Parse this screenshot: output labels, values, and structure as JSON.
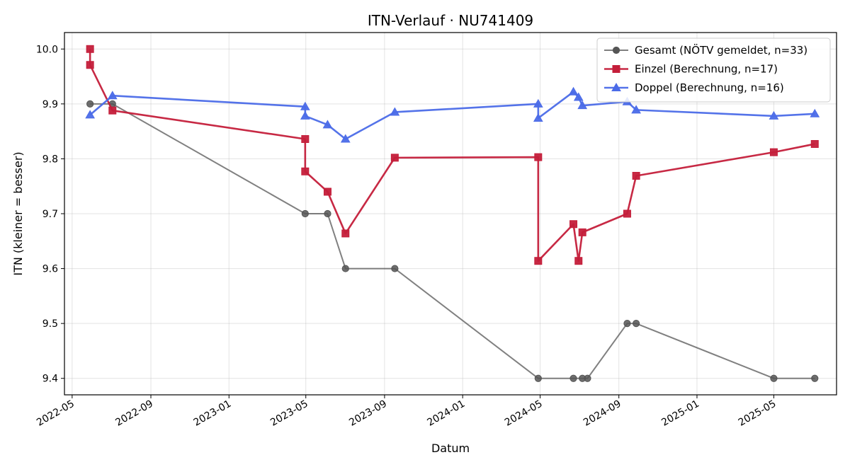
{
  "chart_data": {
    "type": "line",
    "title": "ITN-Verlauf · NU741409",
    "xlabel": "Datum",
    "ylabel": "ITN  (kleiner = besser)",
    "x_ticks": [
      "2022-05",
      "2022-09",
      "2023-01",
      "2023-05",
      "2023-09",
      "2024-01",
      "2024-05",
      "2024-09",
      "2025-01",
      "2025-05"
    ],
    "xlim": [
      "2022-04-19",
      "2025-08-07"
    ],
    "ylim": [
      9.37,
      10.03
    ],
    "y_ticks": [
      9.4,
      9.5,
      9.6,
      9.7,
      9.8,
      9.9,
      10.0
    ],
    "grid": true,
    "legend_position": "top-right",
    "series": [
      {
        "name": "Gesamt (NÖTV gemeldet, n=33)",
        "color": "#555555",
        "marker": "circle",
        "x": [
          "2022-05-29",
          "2022-07-03",
          "2023-04-30",
          "2023-06-04",
          "2023-07-02",
          "2023-09-17",
          "2024-04-28",
          "2024-06-22",
          "2024-07-06",
          "2024-07-14",
          "2024-09-14",
          "2024-09-28",
          "2025-05-01",
          "2025-07-04"
        ],
        "y": [
          9.9,
          9.9,
          9.7,
          9.7,
          9.6,
          9.6,
          9.4,
          9.4,
          9.4,
          9.4,
          9.5,
          9.5,
          9.4,
          9.4
        ]
      },
      {
        "name": "Einzel (Berechnung, n=17)",
        "color": "#c41e3a",
        "marker": "square",
        "x": [
          "2022-05-29",
          "2022-05-29",
          "2022-07-03",
          "2023-04-30",
          "2023-04-30",
          "2023-06-04",
          "2023-07-02",
          "2023-09-17",
          "2024-04-28",
          "2024-04-28",
          "2024-06-22",
          "2024-06-30",
          "2024-07-06",
          "2024-09-14",
          "2024-09-28",
          "2025-05-01",
          "2025-07-04"
        ],
        "y": [
          10.0,
          9.971,
          9.888,
          9.836,
          9.777,
          9.74,
          9.664,
          9.802,
          9.803,
          9.614,
          9.681,
          9.614,
          9.666,
          9.7,
          9.769,
          9.812,
          9.827
        ]
      },
      {
        "name": "Doppel (Berechnung, n=16)",
        "color": "#4b6be8",
        "marker": "triangle",
        "x": [
          "2022-05-29",
          "2022-07-03",
          "2023-04-30",
          "2023-04-30",
          "2023-06-04",
          "2023-07-02",
          "2023-09-17",
          "2024-04-28",
          "2024-04-28",
          "2024-06-22",
          "2024-06-30",
          "2024-07-06",
          "2024-09-14",
          "2024-09-28",
          "2025-05-01",
          "2025-07-04"
        ],
        "y": [
          9.88,
          9.915,
          9.895,
          9.878,
          9.862,
          9.836,
          9.885,
          9.9,
          9.874,
          9.922,
          9.912,
          9.897,
          9.904,
          9.889,
          9.878,
          9.882
        ]
      }
    ]
  }
}
